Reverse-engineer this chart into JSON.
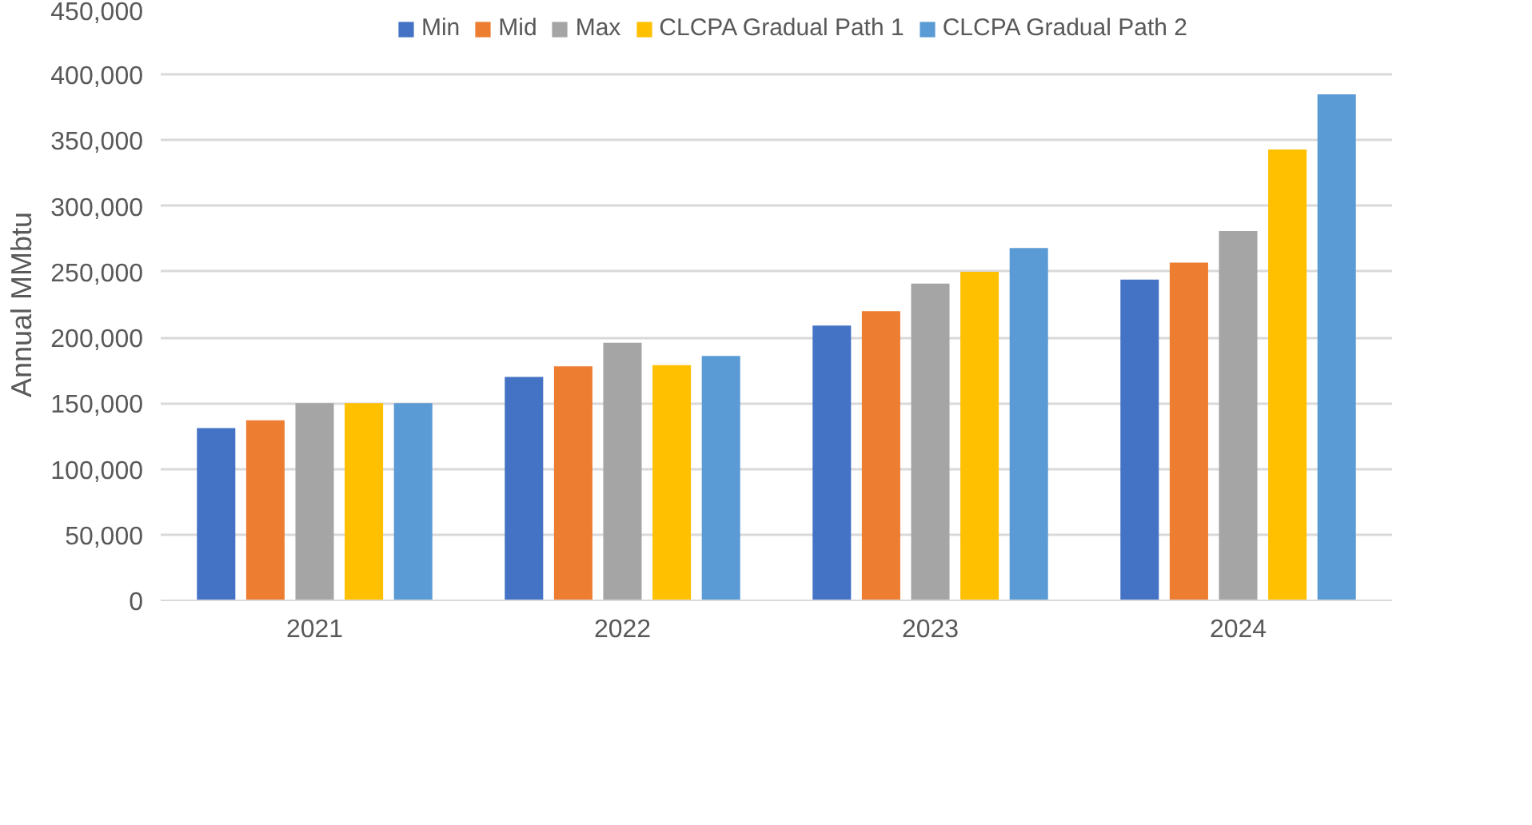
{
  "chart_data": {
    "type": "bar",
    "ylabel": "Annual MMbtu",
    "categories": [
      "2021",
      "2022",
      "2023",
      "2024"
    ],
    "series": [
      {
        "name": "Min",
        "color": "#4472c4",
        "values": [
          131000,
          170000,
          209000,
          244000
        ]
      },
      {
        "name": "Mid",
        "color": "#ed7d31",
        "values": [
          137000,
          178000,
          220000,
          257000
        ]
      },
      {
        "name": "Max",
        "color": "#a5a5a5",
        "values": [
          150000,
          196000,
          241000,
          281000
        ]
      },
      {
        "name": "CLCPA Gradual Path 1",
        "color": "#ffc000",
        "values": [
          150000,
          179000,
          250000,
          343000
        ]
      },
      {
        "name": "CLCPA Gradual Path 2",
        "color": "#5b9bd5",
        "values": [
          150000,
          186000,
          268000,
          385000
        ]
      }
    ],
    "ylim": [
      0,
      450000
    ],
    "yticks": [
      {
        "value": 0,
        "label": "0"
      },
      {
        "value": 50000,
        "label": "50,000"
      },
      {
        "value": 100000,
        "label": "100,000"
      },
      {
        "value": 150000,
        "label": "150,000"
      },
      {
        "value": 200000,
        "label": "200,000"
      },
      {
        "value": 250000,
        "label": "250,000"
      },
      {
        "value": 300000,
        "label": "300,000"
      },
      {
        "value": 350000,
        "label": "350,000"
      },
      {
        "value": 400000,
        "label": "400,000"
      },
      {
        "value": 450000,
        "label": "450,000"
      }
    ],
    "grid": "y",
    "legend": "top"
  }
}
